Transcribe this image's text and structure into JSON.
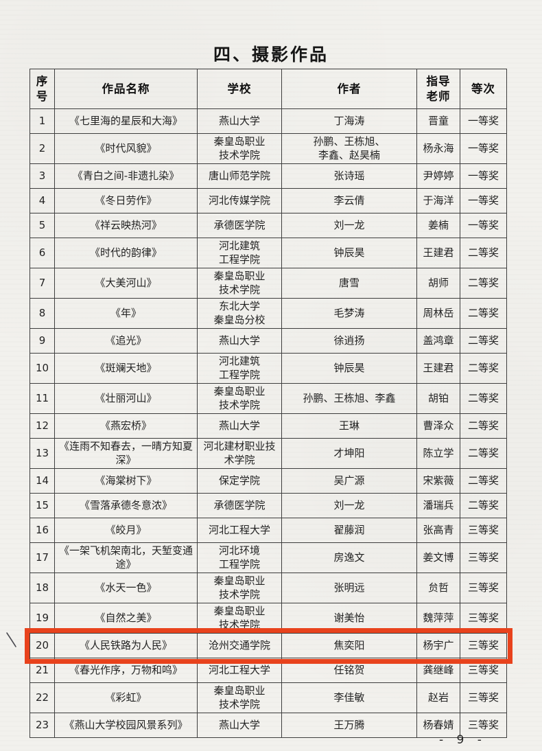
{
  "page": {
    "title": "四、摄影作品",
    "page_number": "- 9 -",
    "highlight_color": "#e8421c"
  },
  "table": {
    "headers": [
      "序\n号",
      "作品名称",
      "学校",
      "作者",
      "指导\n老师",
      "等次"
    ],
    "column_keys": [
      "no",
      "title",
      "school",
      "author",
      "advisor",
      "award"
    ],
    "highlighted_row_no": "20",
    "rows": [
      {
        "no": "1",
        "title": "《七里海的星辰和大海》",
        "school": "燕山大学",
        "author": "丁海涛",
        "advisor": "晋童",
        "award": "一等奖"
      },
      {
        "no": "2",
        "title": "《时代风貌》",
        "school": "秦皇岛职业\n技术学院",
        "author": "孙鹏、王栋旭、\n李鑫、赵昊楠",
        "advisor": "杨永海",
        "award": "一等奖"
      },
      {
        "no": "3",
        "title": "《青白之间-非遗扎染》",
        "school": "唐山师范学院",
        "author": "张诗瑶",
        "advisor": "尹婷婷",
        "award": "一等奖"
      },
      {
        "no": "4",
        "title": "《冬日劳作》",
        "school": "河北传媒学院",
        "author": "李云倩",
        "advisor": "于海洋",
        "award": "一等奖"
      },
      {
        "no": "5",
        "title": "《祥云映热河》",
        "school": "承德医学院",
        "author": "刘一龙",
        "advisor": "姜楠",
        "award": "一等奖"
      },
      {
        "no": "6",
        "title": "《时代的韵律》",
        "school": "河北建筑\n工程学院",
        "author": "钟辰昊",
        "advisor": "王建君",
        "award": "二等奖"
      },
      {
        "no": "7",
        "title": "《大美河山》",
        "school": "秦皇岛职业\n技术学院",
        "author": "唐雪",
        "advisor": "胡师",
        "award": "二等奖"
      },
      {
        "no": "8",
        "title": "《年》",
        "school": "东北大学\n秦皇岛分校",
        "author": "毛梦涛",
        "advisor": "周林岳",
        "award": "二等奖"
      },
      {
        "no": "9",
        "title": "《追光》",
        "school": "燕山大学",
        "author": "徐逍扬",
        "advisor": "盖鸿章",
        "award": "二等奖"
      },
      {
        "no": "10",
        "title": "《斑斓天地》",
        "school": "河北建筑\n工程学院",
        "author": "钟辰昊",
        "advisor": "王建君",
        "award": "二等奖"
      },
      {
        "no": "11",
        "title": "《壮丽河山》",
        "school": "秦皇岛职业\n技术学院",
        "author": "孙鹏、王栋旭、李鑫",
        "advisor": "胡铂",
        "award": "二等奖"
      },
      {
        "no": "12",
        "title": "《燕宏桥》",
        "school": "燕山大学",
        "author": "王琳",
        "advisor": "曹泽众",
        "award": "二等奖"
      },
      {
        "no": "13",
        "title": "《连雨不知春去，一晴方知夏\n深》",
        "school": "河北建材职业技\n术学院",
        "author": "才坤阳",
        "advisor": "陈立学",
        "award": "二等奖"
      },
      {
        "no": "14",
        "title": "《海棠树下》",
        "school": "保定学院",
        "author": "吴广源",
        "advisor": "宋紫薇",
        "award": "二等奖"
      },
      {
        "no": "15",
        "title": "《雪落承德冬意浓》",
        "school": "承德医学院",
        "author": "刘一龙",
        "advisor": "潘瑞兵",
        "award": "二等奖"
      },
      {
        "no": "16",
        "title": "《皎月》",
        "school": "河北工程大学",
        "author": "翟藤润",
        "advisor": "张高青",
        "award": "三等奖"
      },
      {
        "no": "17",
        "title": "《一架飞机架南北，天堑变通\n途》",
        "school": "河北环境\n工程学院",
        "author": "房逸文",
        "advisor": "姜文博",
        "award": "三等奖"
      },
      {
        "no": "18",
        "title": "《水天一色》",
        "school": "秦皇岛职业\n技术学院",
        "author": "张明远",
        "advisor": "贠哲",
        "award": "三等奖"
      },
      {
        "no": "19",
        "title": "《自然之美》",
        "school": "秦皇岛职业\n技术学院",
        "author": "谢美怡",
        "advisor": "魏萍萍",
        "award": "三等奖"
      },
      {
        "no": "20",
        "title": "《人民铁路为人民》",
        "school": "沧州交通学院",
        "author": "焦奕阳",
        "advisor": "杨宇广",
        "award": "三等奖"
      },
      {
        "no": "21",
        "title": "《春光作序，万物和鸣》",
        "school": "河北工程大学",
        "author": "任铭贺",
        "advisor": "龚继峰",
        "award": "三等奖"
      },
      {
        "no": "22",
        "title": "《彩虹》",
        "school": "秦皇岛职业\n技术学院",
        "author": "李佳敏",
        "advisor": "赵岩",
        "award": "三等奖"
      },
      {
        "no": "23",
        "title": "《燕山大学校园风景系列》",
        "school": "燕山大学",
        "author": "王万腾",
        "advisor": "杨春婧",
        "award": "三等奖"
      }
    ]
  },
  "annotations": {
    "handwritten_mark": "pencil-tick-mark"
  }
}
